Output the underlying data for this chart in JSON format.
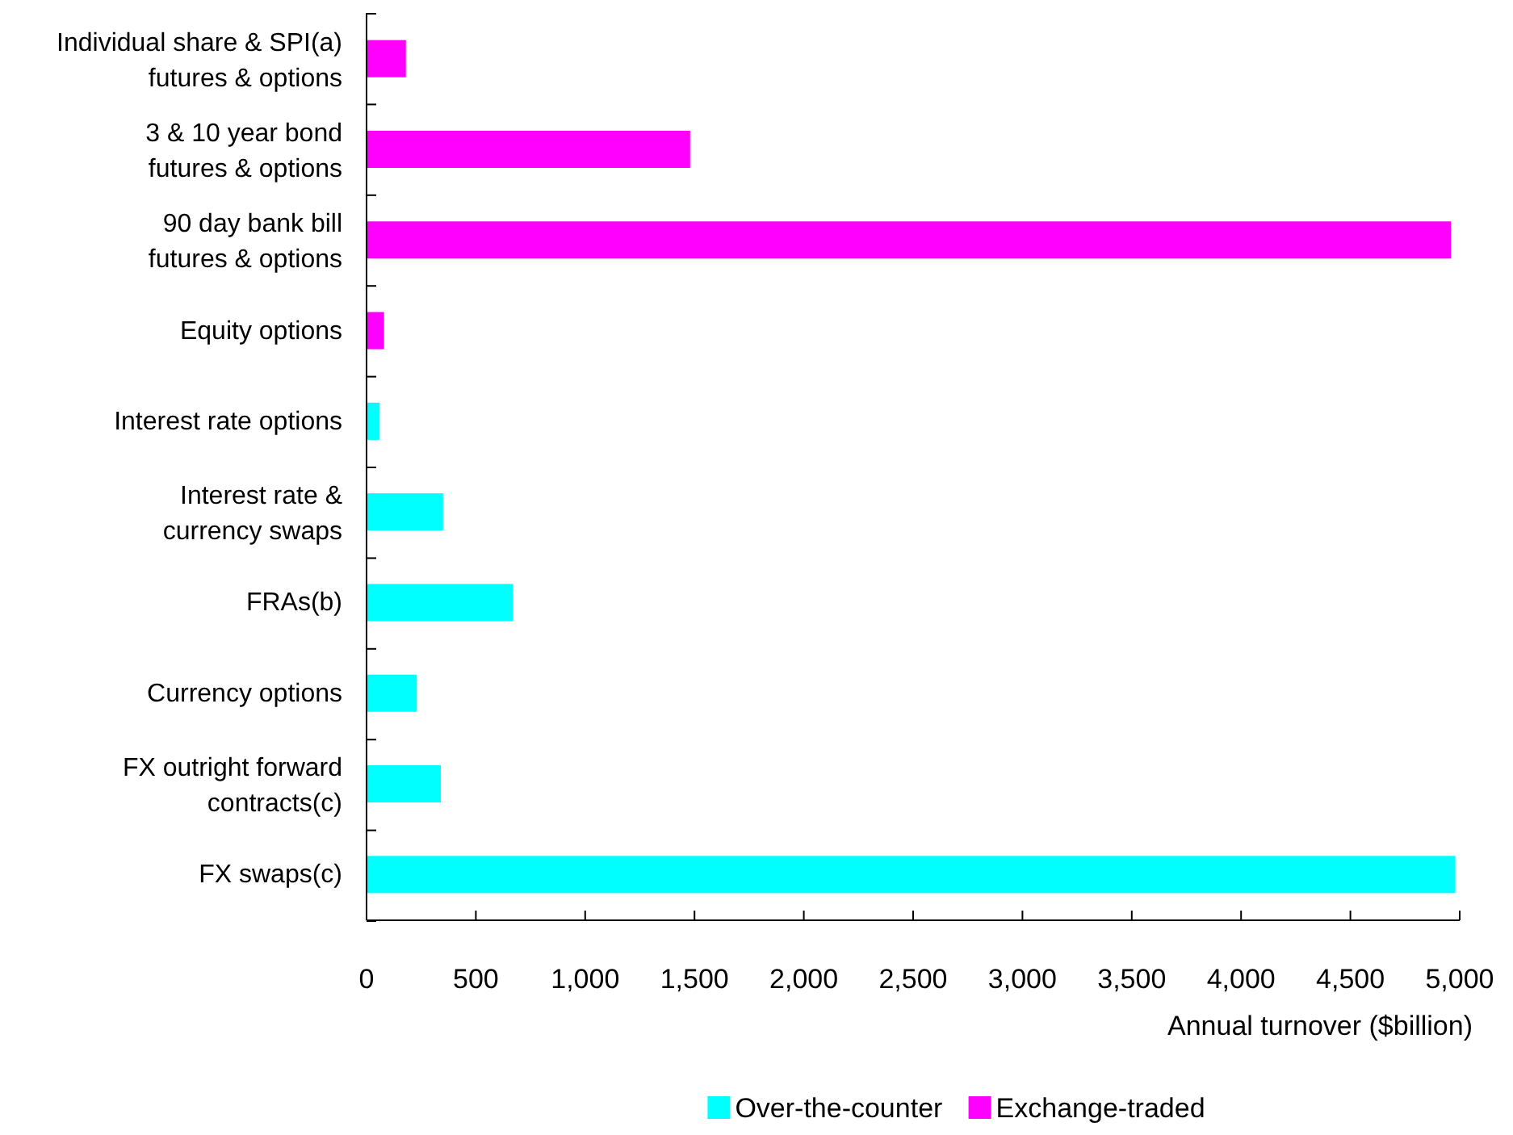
{
  "chart_data": {
    "type": "bar",
    "orientation": "horizontal",
    "categories": [
      "Individual share & SPI(a)\nfutures & options",
      "3 & 10 year bond\nfutures & options",
      "90 day bank bill\nfutures & options",
      "Equity options",
      "Interest rate options",
      "Interest rate &\ncurrency swaps",
      "FRAs(b)",
      "Currency options",
      "FX outright forward\ncontracts(c)",
      "FX swaps(c)"
    ],
    "series": [
      {
        "name": "Over-the-counter",
        "color": "#00ffff",
        "values": [
          null,
          null,
          null,
          null,
          60,
          350,
          670,
          230,
          340,
          4980
        ]
      },
      {
        "name": "Exchange-traded",
        "color": "#ff00ff",
        "values": [
          180,
          1480,
          4960,
          80,
          null,
          null,
          null,
          null,
          null,
          null
        ]
      }
    ],
    "xlabel": "Annual turnover ($billion)",
    "xlim": [
      0,
      5000
    ],
    "xticks": [
      0,
      {
        "value": 500,
        "label": "500"
      },
      {
        "value": 1000,
        "label": "1,000"
      },
      {
        "value": 1500,
        "label": "1,500"
      },
      {
        "value": 2000,
        "label": "2,000"
      },
      {
        "value": 2500,
        "label": "2,500"
      },
      {
        "value": 3000,
        "label": "3,000"
      },
      {
        "value": 3500,
        "label": "3,500"
      },
      {
        "value": 4000,
        "label": "4,000"
      },
      {
        "value": 4500,
        "label": "4,500"
      },
      {
        "value": 5000,
        "label": "5,000"
      }
    ],
    "legend": "bottom",
    "grid": false
  }
}
